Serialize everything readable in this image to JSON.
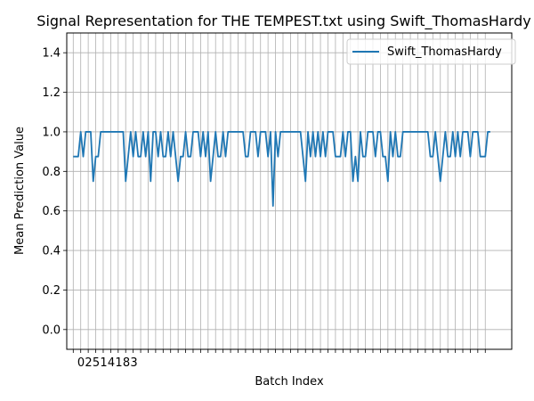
{
  "chart_data": {
    "type": "line",
    "title": "Signal Representation for THE TEMPEST.txt using Swift_ThomasHardy",
    "xlabel": "Batch Index",
    "ylabel": "Mean Prediction Value",
    "xlim": [
      -2.6,
      175.6
    ],
    "ylim": [
      -0.1,
      1.5
    ],
    "yticks": [
      0.0,
      0.2,
      0.4,
      0.6,
      0.8,
      1.0,
      1.2,
      1.4
    ],
    "ytick_labels": [
      "0.0",
      "0.2",
      "0.4",
      "0.6",
      "0.8",
      "1.0",
      "1.2",
      "1.4"
    ],
    "xtick_step": 3,
    "xtick_labels_visible": [
      "0",
      "2",
      "5",
      "1",
      "4",
      "1",
      "8",
      "3"
    ],
    "grid": true,
    "legend_position": "top-right",
    "series": [
      {
        "name": "Swift_ThomasHardy",
        "color": "#1f77b4",
        "values": [
          0.875,
          0.875,
          0.875,
          1,
          0.875,
          1,
          1,
          1,
          0.75,
          0.875,
          0.875,
          1,
          1,
          1,
          1,
          1,
          1,
          1,
          1,
          1,
          1,
          0.75,
          0.875,
          1,
          0.875,
          1,
          0.875,
          0.875,
          1,
          0.875,
          1,
          0.75,
          1,
          1,
          0.875,
          1,
          0.875,
          0.875,
          1,
          0.875,
          1,
          0.875,
          0.75,
          0.875,
          0.875,
          1,
          0.875,
          0.875,
          1,
          1,
          1,
          0.875,
          1,
          0.875,
          1,
          0.75,
          0.875,
          1,
          0.875,
          0.875,
          1,
          0.875,
          1,
          1,
          1,
          1,
          1,
          1,
          1,
          0.875,
          0.875,
          1,
          1,
          1,
          0.875,
          1,
          1,
          1,
          0.875,
          1,
          0.625,
          1,
          0.875,
          1,
          1,
          1,
          1,
          1,
          1,
          1,
          1,
          1,
          0.875,
          0.75,
          1,
          0.875,
          1,
          0.875,
          1,
          0.875,
          1,
          0.875,
          1,
          1,
          1,
          0.875,
          0.875,
          0.875,
          1,
          0.875,
          1,
          1,
          0.75,
          0.875,
          0.75,
          1,
          0.875,
          0.875,
          1,
          1,
          1,
          0.875,
          1,
          1,
          0.875,
          0.875,
          0.75,
          1,
          0.875,
          1,
          0.875,
          0.875,
          1,
          1,
          1,
          1,
          1,
          1,
          1,
          1,
          1,
          1,
          1,
          0.875,
          0.875,
          1,
          0.875,
          0.75,
          0.875,
          1,
          0.875,
          0.875,
          1,
          0.875,
          1,
          0.875,
          1,
          1,
          1,
          0.875,
          1,
          1,
          1,
          0.875,
          0.875,
          0.875,
          1,
          1
        ]
      }
    ]
  }
}
